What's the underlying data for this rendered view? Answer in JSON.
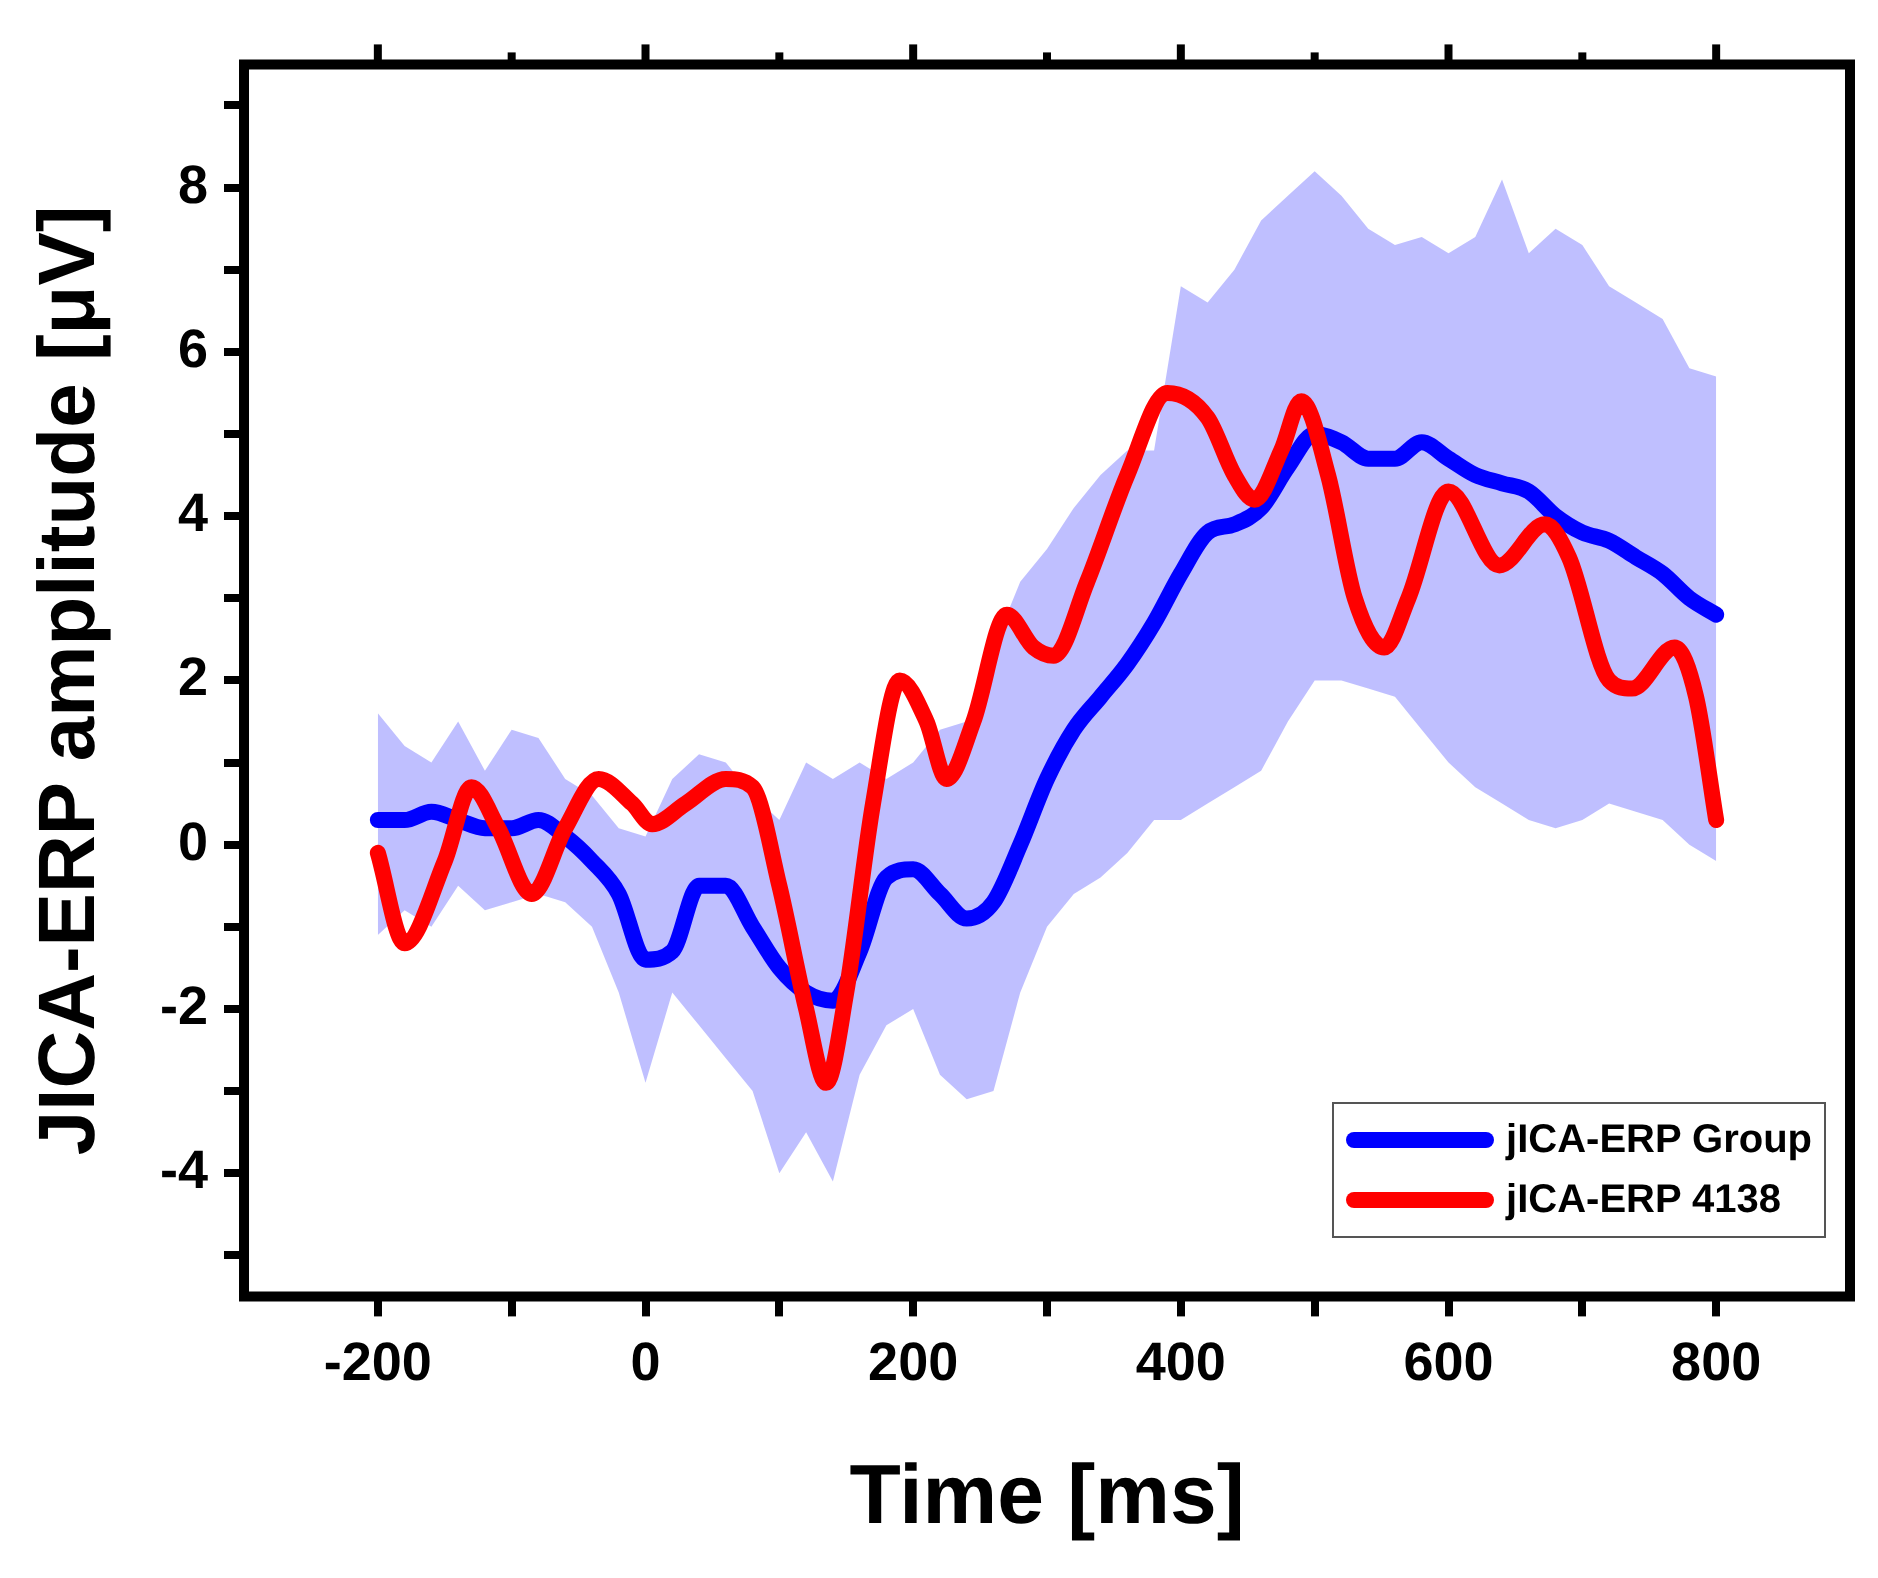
{
  "chart_data": {
    "type": "line",
    "xlabel": "Time [ms]",
    "ylabel": "JICA-ERP amplitude [μV]",
    "xlim": [
      -300,
      900
    ],
    "ylim": [
      -5.5,
      9.5
    ],
    "xticks": [
      -200,
      {
        "value": -100,
        "label": null
      },
      0,
      {
        "value": 100,
        "label": null
      },
      200,
      {
        "value": 300,
        "label": null
      },
      400,
      {
        "value": 500,
        "label": null
      },
      600,
      {
        "value": 700,
        "label": null
      },
      800
    ],
    "yticks": [
      {
        "value": -5,
        "label": null
      },
      -4,
      {
        "value": -3,
        "label": null
      },
      -2,
      {
        "value": -1,
        "label": null
      },
      0,
      {
        "value": 1,
        "label": null
      },
      2,
      {
        "value": 3,
        "label": null
      },
      4,
      {
        "value": 5,
        "label": null
      },
      6,
      {
        "value": 7,
        "label": null
      },
      8,
      {
        "value": 9,
        "label": null
      }
    ],
    "grid": false,
    "legend": "bottom right",
    "marker": "none",
    "line_style": "solid",
    "series": [
      {
        "name": "jICA-ERP Group",
        "color": "#0000ff",
        "x": [
          -200,
          -180,
          -160,
          -140,
          -120,
          -100,
          -80,
          -60,
          -40,
          -20,
          0,
          20,
          40,
          60,
          80,
          100,
          120,
          140,
          160,
          180,
          200,
          220,
          240,
          260,
          280,
          300,
          320,
          340,
          360,
          380,
          400,
          420,
          440,
          460,
          480,
          500,
          520,
          540,
          560,
          580,
          600,
          620,
          640,
          660,
          680,
          700,
          720,
          740,
          760,
          780,
          800
        ],
        "values": [
          0.3,
          0.3,
          0.4,
          0.3,
          0.2,
          0.2,
          0.3,
          0.1,
          -0.2,
          -0.6,
          -1.4,
          -1.3,
          -0.5,
          -0.5,
          -1.0,
          -1.5,
          -1.8,
          -1.9,
          -1.3,
          -0.4,
          -0.3,
          -0.6,
          -0.9,
          -0.7,
          0.0,
          0.8,
          1.4,
          1.8,
          2.2,
          2.7,
          3.3,
          3.8,
          3.9,
          4.1,
          4.6,
          5.0,
          4.9,
          4.7,
          4.7,
          4.9,
          4.7,
          4.5,
          4.4,
          4.3,
          4.0,
          3.8,
          3.7,
          3.5,
          3.3,
          3.0,
          2.8
        ],
        "upper": [
          1.6,
          1.2,
          1.0,
          1.5,
          0.9,
          1.4,
          1.3,
          0.8,
          0.6,
          0.2,
          0.1,
          0.8,
          1.1,
          1.0,
          0.6,
          0.3,
          1.0,
          0.8,
          1.0,
          0.8,
          1.0,
          1.4,
          1.5,
          2.4,
          3.2,
          3.6,
          4.1,
          4.5,
          4.8,
          4.8,
          6.8,
          6.6,
          7.0,
          7.6,
          7.9,
          8.2,
          7.9,
          7.5,
          7.3,
          7.4,
          7.2,
          7.4,
          8.1,
          7.2,
          7.5,
          7.3,
          6.8,
          6.6,
          6.4,
          5.8,
          5.7
        ],
        "lower": [
          -1.1,
          -0.8,
          -1.0,
          -0.5,
          -0.8,
          -0.7,
          -0.6,
          -0.7,
          -1.0,
          -1.8,
          -2.9,
          -1.8,
          -2.2,
          -2.6,
          -3.0,
          -4.0,
          -3.5,
          -4.1,
          -2.8,
          -2.2,
          -2.0,
          -2.8,
          -3.1,
          -3.0,
          -1.8,
          -1.0,
          -0.6,
          -0.4,
          -0.1,
          0.3,
          0.3,
          0.5,
          0.7,
          0.9,
          1.5,
          2.0,
          2.0,
          1.9,
          1.8,
          1.4,
          1.0,
          0.7,
          0.5,
          0.3,
          0.2,
          0.3,
          0.5,
          0.4,
          0.3,
          0.0,
          -0.2
        ]
      },
      {
        "name": "jICA-ERP 4138",
        "color": "#ff0000",
        "x": [
          -200,
          -180,
          -150,
          -130,
          -110,
          -85,
          -60,
          -35,
          -10,
          5,
          30,
          60,
          80,
          100,
          120,
          135,
          150,
          170,
          190,
          210,
          225,
          245,
          270,
          290,
          305,
          330,
          360,
          390,
          420,
          440,
          455,
          475,
          490,
          510,
          530,
          552,
          570,
          600,
          638,
          672,
          690,
          720,
          737,
          769,
          785,
          800
        ],
        "values": [
          -0.1,
          -1.2,
          -0.2,
          0.7,
          0.2,
          -0.6,
          0.2,
          0.8,
          0.5,
          0.25,
          0.5,
          0.8,
          0.7,
          -0.5,
          -2.0,
          -2.9,
          -1.8,
          0.5,
          2.0,
          1.5,
          0.8,
          1.5,
          2.8,
          2.4,
          2.3,
          3.2,
          4.5,
          5.5,
          5.2,
          4.5,
          4.2,
          4.8,
          5.4,
          4.5,
          3.0,
          2.4,
          3.0,
          4.3,
          3.4,
          3.9,
          3.5,
          2.0,
          1.9,
          2.4,
          1.8,
          0.3
        ]
      }
    ]
  }
}
